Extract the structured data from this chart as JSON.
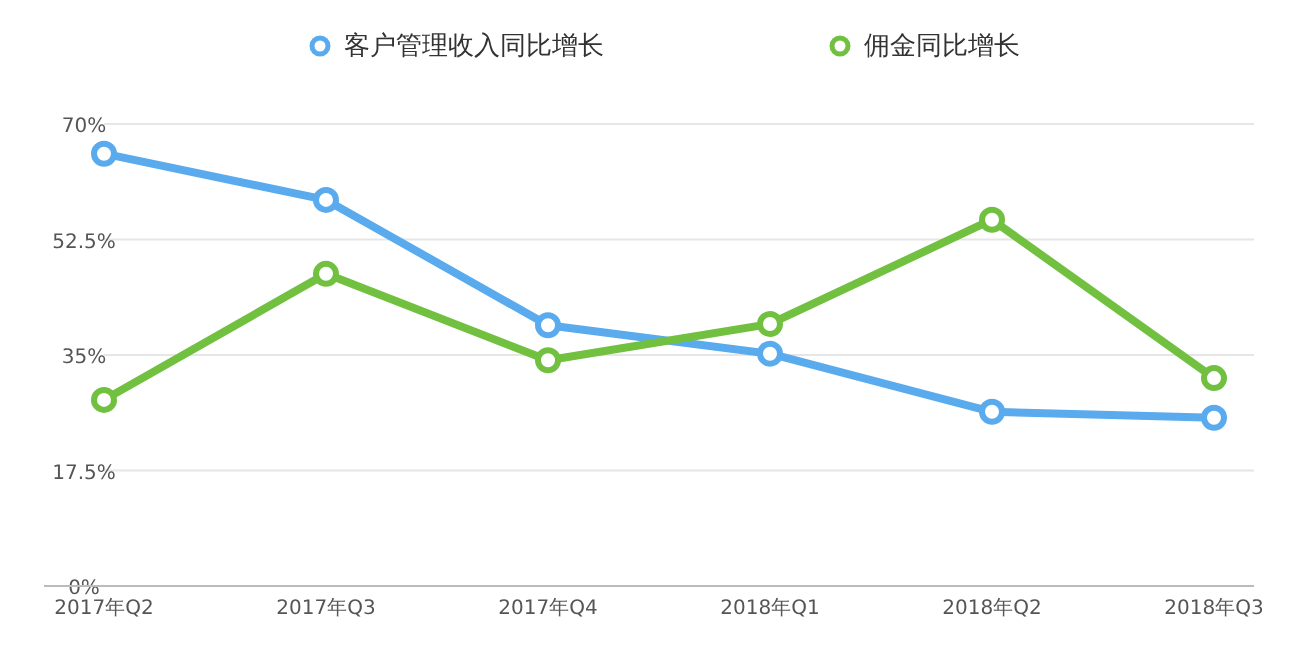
{
  "chart_data": {
    "type": "line",
    "categories": [
      "2017年Q2",
      "2017年Q3",
      "2017年Q4",
      "2018年Q1",
      "2018年Q2",
      "2018年Q3"
    ],
    "series": [
      {
        "name": "客户管理收入同比增长",
        "color": "#5aaaee",
        "values": [
          65.5,
          58.5,
          39.5,
          35.2,
          26.4,
          25.5
        ]
      },
      {
        "name": "佣金同比增长",
        "color": "#72c040",
        "values": [
          28.2,
          47.3,
          34.2,
          39.7,
          55.5,
          31.5
        ]
      }
    ],
    "ylim": [
      0,
      70
    ],
    "yticks": [
      {
        "value": 0,
        "label": "0%"
      },
      {
        "value": 17.5,
        "label": "17.5%"
      },
      {
        "value": 35,
        "label": "35%"
      },
      {
        "value": 52.5,
        "label": "52.5%"
      },
      {
        "value": 70,
        "label": "70%"
      }
    ],
    "grid": "y",
    "legend": "top",
    "marker": "circle",
    "line_style": "solid"
  }
}
